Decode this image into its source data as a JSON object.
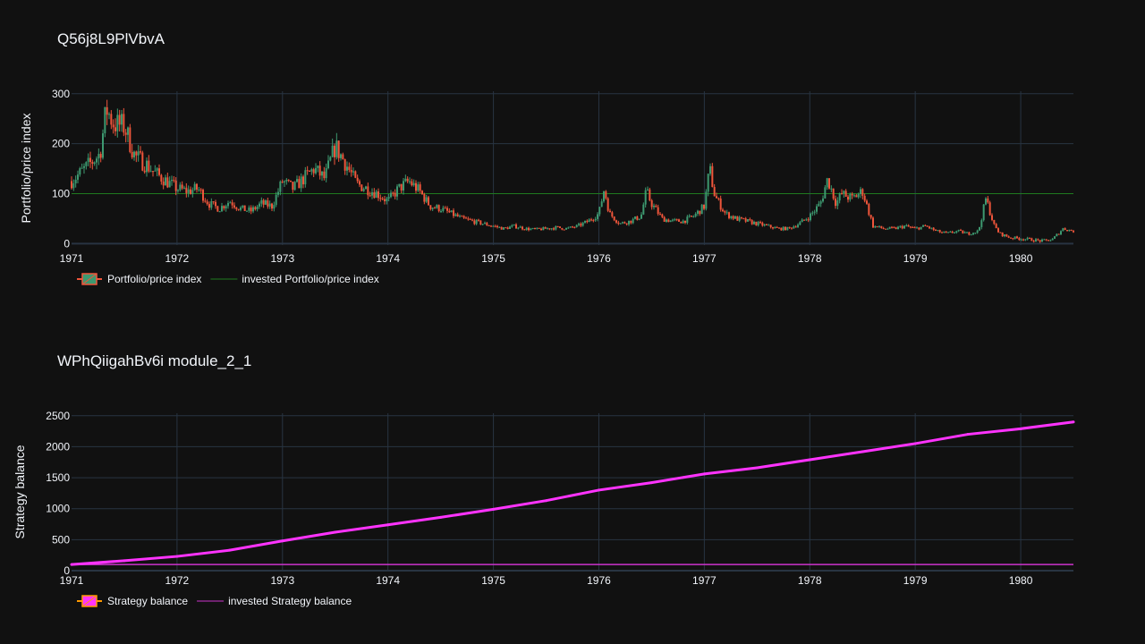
{
  "colors": {
    "background": "#111111",
    "grid": "#283442",
    "text": "#f2f5fa",
    "increasing": "#3d9970",
    "decreasing": "#ef553b",
    "invested_price": "#1f7a1f",
    "balance_line": "#ff33ff",
    "invested_balance": "#cc33cc",
    "balance_legend_fill": "#ff9900"
  },
  "chart_data": [
    {
      "type": "candlestick",
      "title": "Q56j8L9PlVbvA",
      "xlabel": "",
      "ylabel": "Portfolio/price index",
      "x_ticks": [
        "1971",
        "1972",
        "1973",
        "1974",
        "1975",
        "1976",
        "1977",
        "1978",
        "1979",
        "1980"
      ],
      "x_range": [
        1971.0,
        1980.5
      ],
      "y_ticks": [
        "0",
        "100",
        "200",
        "300"
      ],
      "ylim": [
        -3,
        305
      ],
      "legend": [
        "Portfolio/price index",
        "invested Portfolio/price index"
      ],
      "invested_level": 100,
      "series": [
        {
          "name": "Portfolio/price index",
          "x": [
            1971.0,
            1971.1,
            1971.2,
            1971.27,
            1971.33,
            1971.4,
            1971.5,
            1971.6,
            1971.7,
            1971.8,
            1971.9,
            1972.0,
            1972.1,
            1972.2,
            1972.3,
            1972.4,
            1972.5,
            1972.6,
            1972.7,
            1972.8,
            1972.9,
            1973.0,
            1973.1,
            1973.2,
            1973.3,
            1973.4,
            1973.5,
            1973.6,
            1973.7,
            1973.8,
            1973.9,
            1974.0,
            1974.1,
            1974.2,
            1974.3,
            1974.4,
            1974.5,
            1974.6,
            1974.7,
            1974.8,
            1974.9,
            1975.0,
            1975.1,
            1975.2,
            1975.3,
            1975.4,
            1975.5,
            1975.6,
            1975.7,
            1975.8,
            1975.9,
            1976.0,
            1976.05,
            1976.1,
            1976.2,
            1976.3,
            1976.4,
            1976.45,
            1976.5,
            1976.6,
            1976.7,
            1976.8,
            1976.9,
            1977.0,
            1977.05,
            1977.1,
            1977.2,
            1977.3,
            1977.4,
            1977.5,
            1977.6,
            1977.7,
            1977.8,
            1977.9,
            1978.0,
            1978.1,
            1978.17,
            1978.25,
            1978.3,
            1978.4,
            1978.5,
            1978.6,
            1978.7,
            1978.8,
            1978.9,
            1979.0,
            1979.1,
            1979.2,
            1979.3,
            1979.4,
            1979.5,
            1979.6,
            1979.67,
            1979.75,
            1979.8,
            1979.9,
            1980.0,
            1980.1,
            1980.2,
            1980.3,
            1980.4,
            1980.5
          ],
          "y": [
            125,
            145,
            165,
            180,
            270,
            240,
            235,
            175,
            160,
            140,
            125,
            110,
            105,
            110,
            80,
            70,
            85,
            70,
            65,
            80,
            75,
            125,
            110,
            130,
            150,
            130,
            195,
            160,
            120,
            110,
            100,
            85,
            110,
            125,
            105,
            75,
            70,
            60,
            50,
            45,
            40,
            35,
            30,
            35,
            30,
            28,
            30,
            32,
            30,
            35,
            45,
            60,
            110,
            60,
            40,
            45,
            55,
            105,
            80,
            50,
            45,
            45,
            55,
            75,
            150,
            95,
            60,
            50,
            45,
            40,
            35,
            30,
            30,
            40,
            55,
            80,
            130,
            80,
            100,
            90,
            105,
            35,
            30,
            30,
            35,
            30,
            35,
            25,
            20,
            25,
            20,
            25,
            90,
            35,
            20,
            12,
            10,
            8,
            5,
            8,
            30,
            25
          ]
        }
      ]
    },
    {
      "type": "line",
      "title": "WPhQiigahBv6i module_2_1",
      "xlabel": "",
      "ylabel": "Strategy balance",
      "x_ticks": [
        "1971",
        "1972",
        "1973",
        "1974",
        "1975",
        "1976",
        "1977",
        "1978",
        "1979",
        "1980"
      ],
      "x_range": [
        1971.0,
        1980.5
      ],
      "y_ticks": [
        "0",
        "500",
        "1000",
        "1500",
        "2000",
        "2500"
      ],
      "ylim": [
        0,
        2540
      ],
      "legend": [
        "Strategy balance",
        "invested Strategy balance"
      ],
      "invested_level": 100,
      "series": [
        {
          "name": "Strategy balance",
          "x": [
            1971.0,
            1971.5,
            1972.0,
            1972.5,
            1973.0,
            1973.5,
            1974.0,
            1974.5,
            1975.0,
            1975.5,
            1976.0,
            1976.5,
            1977.0,
            1977.5,
            1978.0,
            1978.5,
            1979.0,
            1979.5,
            1980.0,
            1980.5
          ],
          "y": [
            100,
            160,
            230,
            330,
            480,
            620,
            740,
            860,
            990,
            1130,
            1300,
            1420,
            1560,
            1660,
            1790,
            1920,
            2050,
            2200,
            2290,
            2400
          ]
        }
      ]
    }
  ]
}
